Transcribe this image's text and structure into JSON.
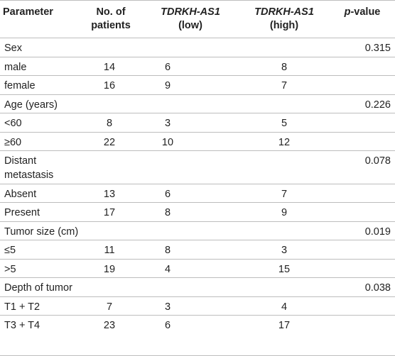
{
  "header": {
    "parameter": "Parameter",
    "patients_line1": "No. of",
    "patients_line2": "patients",
    "low_line1": "TDRKH-AS1",
    "low_line2": "(low)",
    "high_line1": "TDRKH-AS1",
    "high_line2": "(high)",
    "pvalue_italic": "p",
    "pvalue_rest": "-value"
  },
  "rows": [
    {
      "parameter": "Sex",
      "patients": "",
      "low": "",
      "high": "",
      "pvalue": "0.315"
    },
    {
      "parameter": "male",
      "patients": "14",
      "low": "6",
      "high": "8",
      "pvalue": ""
    },
    {
      "parameter": "female",
      "patients": "16",
      "low": "9",
      "high": "7",
      "pvalue": ""
    },
    {
      "parameter": "Age (years)",
      "patients": "",
      "low": "",
      "high": "",
      "pvalue": "0.226"
    },
    {
      "parameter": "<60",
      "patients": "8",
      "low": "3",
      "high": "5",
      "pvalue": ""
    },
    {
      "parameter": "≥60",
      "patients": "22",
      "low": "10",
      "high": "12",
      "pvalue": ""
    },
    {
      "parameter": "Distant",
      "parameter_line2": "metastasis",
      "patients": "",
      "low": "",
      "high": "",
      "pvalue": "0.078"
    },
    {
      "parameter": "Absent",
      "patients": "13",
      "low": "6",
      "high": "7",
      "pvalue": ""
    },
    {
      "parameter": "Present",
      "patients": "17",
      "low": "8",
      "high": "9",
      "pvalue": ""
    },
    {
      "parameter": "Tumor size (cm)",
      "patients": "",
      "low": "",
      "high": "",
      "pvalue": "0.019"
    },
    {
      "parameter": "≤5",
      "patients": "11",
      "low": "8",
      "high": "3",
      "pvalue": ""
    },
    {
      "parameter": ">5",
      "patients": "19",
      "low": "4",
      "high": "15",
      "pvalue": ""
    },
    {
      "parameter": "Depth of tumor",
      "patients": "",
      "low": "",
      "high": "",
      "pvalue": "0.038"
    },
    {
      "parameter": "T1 + T2",
      "patients": "7",
      "low": "3",
      "high": "4",
      "pvalue": ""
    },
    {
      "parameter": "T3 + T4",
      "patients": "23",
      "low": "6",
      "high": "17",
      "pvalue": ""
    }
  ]
}
